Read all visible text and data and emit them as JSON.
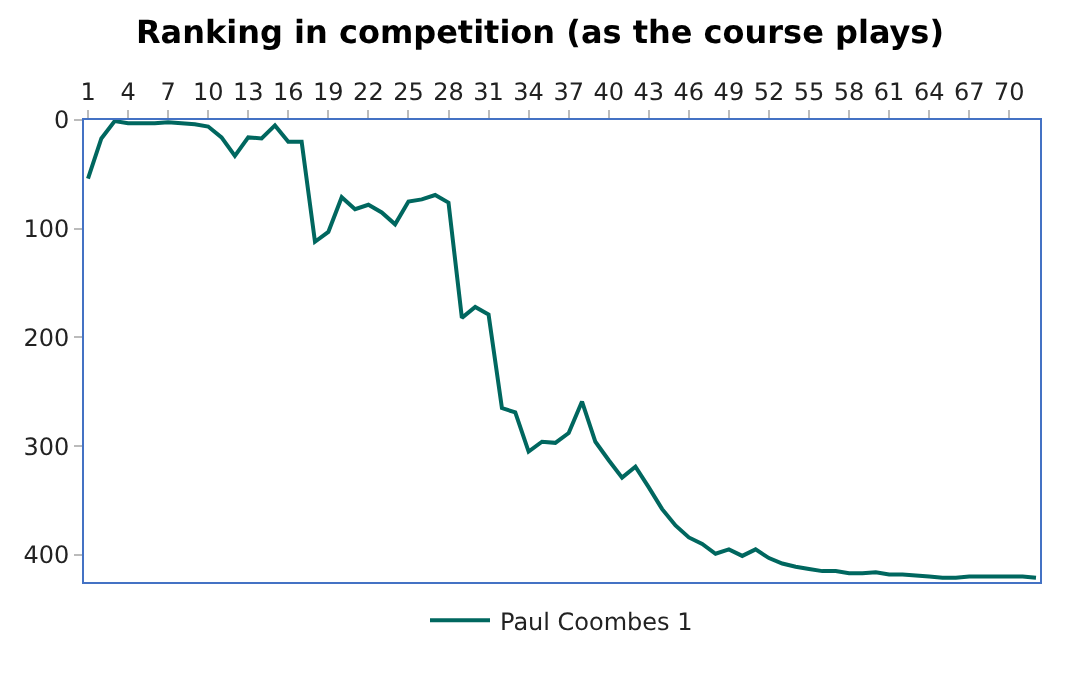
{
  "chart_data": {
    "type": "line",
    "title": "Ranking in competition (as the course plays)",
    "categories": [
      "1",
      null,
      null,
      "4",
      null,
      null,
      "7",
      null,
      null,
      "10",
      null,
      null,
      "13",
      null,
      null,
      "16",
      null,
      null,
      "19",
      null,
      null,
      "22",
      null,
      null,
      "25",
      null,
      null,
      "28",
      null,
      null,
      "31",
      null,
      null,
      "34",
      null,
      null,
      "37",
      null,
      null,
      "40",
      null,
      null,
      "43",
      null,
      null,
      "46",
      null,
      null,
      "49",
      null,
      null,
      "52",
      null,
      null,
      "55",
      null,
      null,
      "58",
      null,
      null,
      "61",
      null,
      null,
      "64",
      null,
      null,
      "67",
      null,
      null,
      "70",
      null,
      null
    ],
    "series": [
      {
        "name": "Paul Coombes 1",
        "color": "#00675f",
        "values": [
          54,
          17,
          1,
          3,
          3,
          3,
          2,
          3,
          4,
          6,
          16,
          33,
          16,
          17,
          5,
          20,
          20,
          112,
          103,
          71,
          82,
          78,
          85,
          96,
          75,
          73,
          69,
          76,
          182,
          172,
          179,
          265,
          269,
          305,
          296,
          297,
          288,
          259,
          296,
          313,
          329,
          319,
          338,
          358,
          373,
          384,
          390,
          399,
          395,
          401,
          395,
          403,
          408,
          411,
          413,
          415,
          415,
          417,
          417,
          416,
          418,
          418,
          419,
          420,
          421,
          421,
          420,
          420,
          420,
          420,
          420,
          421
        ]
      }
    ],
    "ylim": [
      425,
      0
    ],
    "yticks": [
      0,
      100,
      200,
      300,
      400
    ],
    "legend": "bottom",
    "marker": "none",
    "line_style": "solid"
  }
}
